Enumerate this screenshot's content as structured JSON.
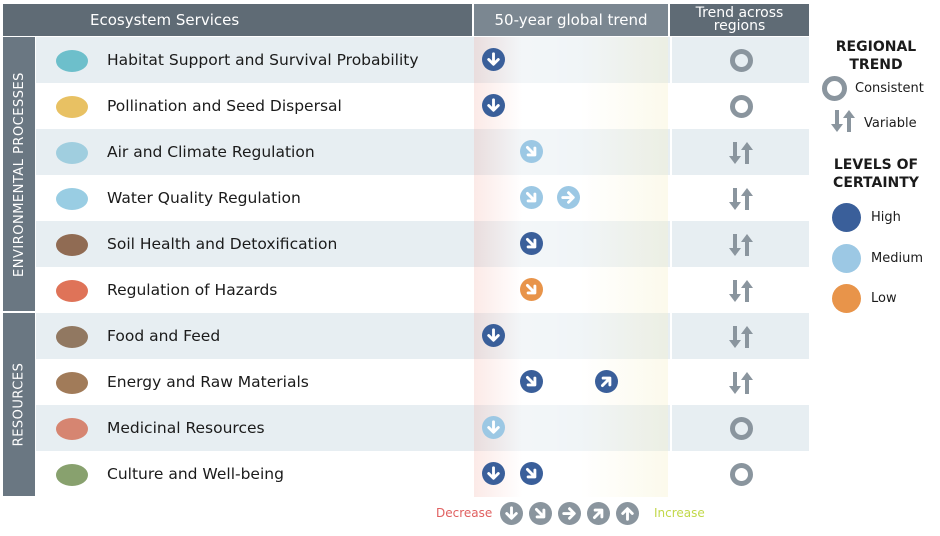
{
  "headers": {
    "services": "Ecosystem Services",
    "global_trend": "50-year global trend",
    "regional": "Trend across regions"
  },
  "groups": [
    {
      "label": "ENVIRONMENTAL PROCESSES"
    },
    {
      "label": "RESOURCES"
    }
  ],
  "colors": {
    "high": "#3a5f9a",
    "medium": "#9cc8e4",
    "low": "#e8944a",
    "gray": "#8a959e",
    "decrease": "#e06060",
    "increase": "#c2d84a"
  },
  "rows": [
    {
      "label": "Habitat Support and Survival Probability",
      "icon": "bird-icon",
      "trends": [
        {
          "dir": "down",
          "certainty": "high"
        }
      ],
      "regional": "consistent"
    },
    {
      "label": "Pollination and Seed Dispersal",
      "icon": "bee-icon",
      "trends": [
        {
          "dir": "down",
          "certainty": "high"
        }
      ],
      "regional": "consistent"
    },
    {
      "label": "Air and Climate Regulation",
      "icon": "wind-icon",
      "trends": [
        {
          "dir": "down-right",
          "certainty": "medium"
        }
      ],
      "regional": "variable"
    },
    {
      "label": "Water Quality Regulation",
      "icon": "water-icon",
      "trends": [
        {
          "dir": "down-right",
          "certainty": "medium"
        },
        {
          "dir": "right",
          "certainty": "medium"
        }
      ],
      "regional": "variable"
    },
    {
      "label": "Soil Health and Detoxification",
      "icon": "soil-icon",
      "trends": [
        {
          "dir": "down-right",
          "certainty": "high"
        }
      ],
      "regional": "variable"
    },
    {
      "label": "Regulation of Hazards",
      "icon": "fire-icon",
      "trends": [
        {
          "dir": "down-right",
          "certainty": "low"
        }
      ],
      "regional": "variable"
    },
    {
      "label": "Food and Feed",
      "icon": "cow-icon",
      "trends": [
        {
          "dir": "down",
          "certainty": "high"
        }
      ],
      "regional": "variable"
    },
    {
      "label": "Energy and Raw Materials",
      "icon": "logs-icon",
      "trends": [
        {
          "dir": "down-right",
          "certainty": "high"
        },
        {
          "dir": "up-right",
          "certainty": "high"
        }
      ],
      "regional": "variable"
    },
    {
      "label": "Medicinal Resources",
      "icon": "medicine-icon",
      "trends": [
        {
          "dir": "down",
          "certainty": "medium"
        }
      ],
      "regional": "consistent"
    },
    {
      "label": "Culture and Well-being",
      "icon": "gardener-icon",
      "trends": [
        {
          "dir": "down",
          "certainty": "high"
        },
        {
          "dir": "down-right",
          "certainty": "high"
        }
      ],
      "regional": "consistent"
    }
  ],
  "legend": {
    "regional_title": "REGIONAL TREND",
    "consistent": "Consistent",
    "variable": "Variable",
    "certainty_title": "LEVELS OF CERTAINTY",
    "high": "High",
    "medium": "Medium",
    "low": "Low"
  },
  "scale": {
    "decrease": "Decrease",
    "increase": "Increase",
    "directions": [
      "down",
      "down-right",
      "right",
      "up-right",
      "up"
    ]
  }
}
